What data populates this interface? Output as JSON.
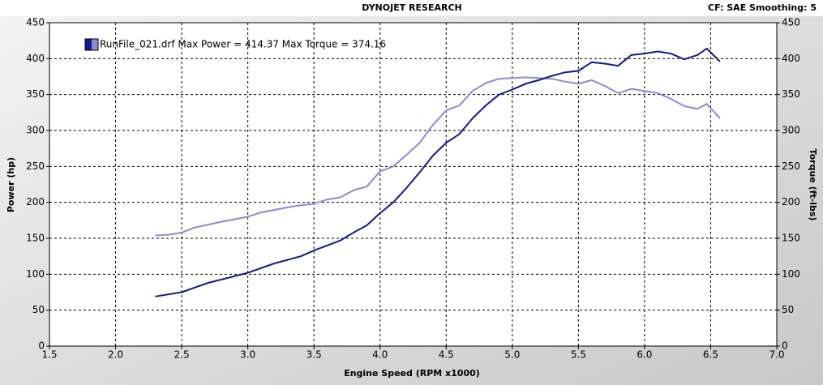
{
  "chart_data": {
    "type": "line",
    "title": "DYNOJET RESEARCH",
    "subtitle": "CF: SAE  Smoothing: 5",
    "legend": "RunFile_021.drf Max Power = 414.37 Max Torque = 374.16",
    "xlabel": "Engine Speed (RPM x1000)",
    "ylabel": "Power (hp)",
    "y2label": "Torque (ft-lbs)",
    "grid": true,
    "xlim": [
      1.5,
      7.0
    ],
    "xticks": [
      1.5,
      {
        "value": 2,
        "label": "2.0"
      },
      2.5,
      {
        "value": 3,
        "label": "3.0"
      },
      3.5,
      {
        "value": 4,
        "label": "4.0"
      },
      4.5,
      {
        "value": 5,
        "label": "5.0"
      },
      5.5,
      {
        "value": 6,
        "label": "6.0"
      },
      6.5,
      {
        "value": 7,
        "label": "7.0"
      }
    ],
    "ylim": [
      0,
      450
    ],
    "yticks": [
      0,
      50,
      100,
      150,
      200,
      250,
      300,
      350,
      400,
      450
    ],
    "y2lim": [
      0,
      450
    ],
    "y2ticks": [
      0,
      50,
      100,
      150,
      200,
      250,
      300,
      350,
      400,
      450
    ],
    "series": [
      {
        "color": "#14198c",
        "x": [
          2.3,
          2.5,
          2.7,
          3.0,
          3.2,
          3.4,
          3.5,
          3.7,
          3.8,
          3.9,
          4.0,
          4.1,
          4.2,
          4.3,
          4.4,
          4.5,
          4.6,
          4.7,
          4.8,
          4.9,
          5.0,
          5.1,
          5.2,
          5.3,
          5.4,
          5.5,
          5.6,
          5.7,
          5.8,
          5.9,
          6.0,
          6.1,
          6.2,
          6.3,
          6.4,
          6.47,
          6.57
        ],
        "values": [
          69,
          75,
          88,
          102,
          115,
          125,
          133,
          147,
          158,
          168,
          185,
          200,
          220,
          242,
          265,
          283,
          295,
          317,
          335,
          350,
          357,
          365,
          370,
          376,
          381,
          383,
          395,
          393,
          390,
          405,
          407,
          410,
          407,
          399,
          405,
          414,
          396
        ]
      },
      {
        "color": "#8a8ad6",
        "axis": "y2",
        "x": [
          2.3,
          2.4,
          2.5,
          2.6,
          2.8,
          3.0,
          3.1,
          3.3,
          3.4,
          3.5,
          3.6,
          3.7,
          3.8,
          3.9,
          4.0,
          4.1,
          4.2,
          4.3,
          4.4,
          4.5,
          4.6,
          4.7,
          4.8,
          4.9,
          5.0,
          5.1,
          5.2,
          5.3,
          5.4,
          5.5,
          5.6,
          5.7,
          5.8,
          5.9,
          6.0,
          6.1,
          6.2,
          6.3,
          6.4,
          6.47,
          6.57
        ],
        "values": [
          154,
          155,
          158,
          165,
          173,
          180,
          186,
          193,
          196,
          198,
          204,
          207,
          217,
          222,
          243,
          250,
          266,
          283,
          308,
          328,
          335,
          355,
          366,
          372,
          373,
          374,
          373,
          372,
          368,
          365,
          370,
          362,
          352,
          358,
          355,
          352,
          344,
          334,
          330,
          337,
          317
        ]
      }
    ]
  }
}
